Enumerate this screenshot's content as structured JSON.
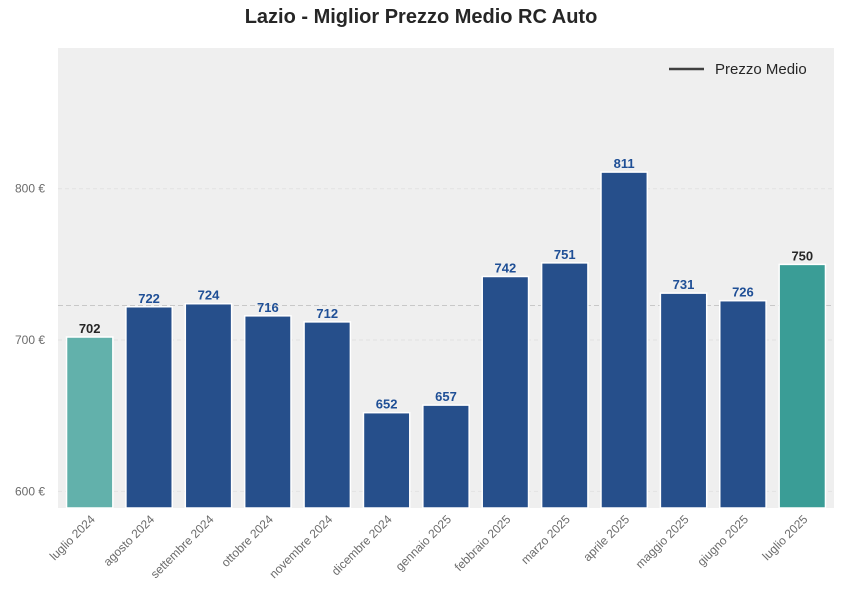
{
  "chart_data": {
    "type": "bar",
    "title": "Lazio - Miglior Prezzo Medio RC Auto",
    "categories": [
      "luglio 2024",
      "agosto 2024",
      "settembre 2024",
      "ottobre 2024",
      "novembre 2024",
      "dicembre 2024",
      "gennaio 2025",
      "febbraio 2025",
      "marzo 2025",
      "aprile 2025",
      "maggio 2025",
      "giugno 2025",
      "luglio 2025"
    ],
    "values": [
      702,
      722,
      724,
      716,
      712,
      652,
      657,
      742,
      751,
      811,
      731,
      726,
      750
    ],
    "value_labels": [
      "702",
      "722",
      "724",
      "716",
      "712",
      "652",
      "657",
      "742",
      "751",
      "811",
      "731",
      "726",
      "750"
    ],
    "bar_colors": [
      "#62b1ab",
      "#264f8b",
      "#264f8b",
      "#264f8b",
      "#264f8b",
      "#264f8b",
      "#264f8b",
      "#264f8b",
      "#264f8b",
      "#264f8b",
      "#264f8b",
      "#264f8b",
      "#3a9d96"
    ],
    "label_colors": [
      "#262626",
      "#1f4f96",
      "#1f4f96",
      "#1f4f96",
      "#1f4f96",
      "#1f4f96",
      "#1f4f96",
      "#1f4f96",
      "#1f4f96",
      "#1f4f96",
      "#1f4f96",
      "#1f4f96",
      "#262626"
    ],
    "xlabel": "",
    "ylabel": "",
    "ylim": [
      589,
      893
    ],
    "yticks": [
      600,
      700,
      800
    ],
    "ytick_labels": [
      "600 €",
      "700 €",
      "800 €"
    ],
    "mean_line": 722.8,
    "legend": {
      "label": "Prezzo Medio",
      "placement": "top-right"
    },
    "grid": true,
    "colors": {
      "background": "#efefef",
      "mean_line": "#c8c8c8",
      "legend_line": "#404040"
    }
  }
}
